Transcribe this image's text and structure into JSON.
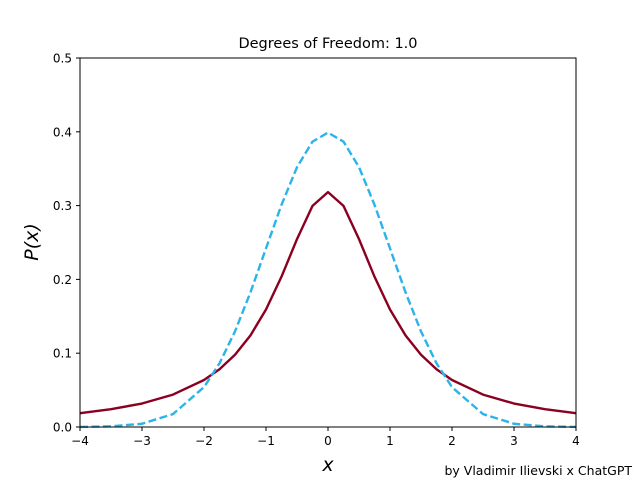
{
  "chart_data": {
    "type": "line",
    "title": "Degrees of Freedom: 1.0",
    "xlabel": "x",
    "ylabel": "P(x)",
    "xlim": [
      -4,
      4
    ],
    "ylim": [
      0,
      0.5
    ],
    "xticks": [
      -4,
      -3,
      -2,
      -1,
      0,
      1,
      2,
      3,
      4
    ],
    "xtick_labels": [
      "−4",
      "−3",
      "−2",
      "−1",
      "0",
      "1",
      "2",
      "3",
      "4"
    ],
    "yticks": [
      0.0,
      0.1,
      0.2,
      0.3,
      0.4,
      0.5
    ],
    "ytick_labels": [
      "0.0",
      "0.1",
      "0.2",
      "0.3",
      "0.4",
      "0.5"
    ],
    "grid": false,
    "legend": "none",
    "series": [
      {
        "style": "solid",
        "color": "#8b0021",
        "x": [
          -4,
          -3.5,
          -3,
          -2.5,
          -2,
          -1.75,
          -1.5,
          -1.25,
          -1,
          -0.75,
          -0.5,
          -0.25,
          0,
          0.25,
          0.5,
          0.75,
          1,
          1.25,
          1.5,
          1.75,
          2,
          2.5,
          3,
          3.5,
          4
        ],
        "values": [
          0.0187,
          0.0241,
          0.0318,
          0.0439,
          0.0637,
          0.0783,
          0.0979,
          0.1242,
          0.1592,
          0.2037,
          0.2546,
          0.2996,
          0.3183,
          0.2996,
          0.2546,
          0.2037,
          0.1592,
          0.1242,
          0.0979,
          0.0783,
          0.0637,
          0.0439,
          0.0318,
          0.0241,
          0.0187
        ]
      },
      {
        "style": "dashed",
        "color": "#2bb3ea",
        "x": [
          -4,
          -3.5,
          -3,
          -2.5,
          -2,
          -1.75,
          -1.5,
          -1.25,
          -1,
          -0.75,
          -0.5,
          -0.25,
          0,
          0.25,
          0.5,
          0.75,
          1,
          1.25,
          1.5,
          1.75,
          2,
          2.5,
          3,
          3.5,
          4
        ],
        "values": [
          0.0001,
          0.0009,
          0.0044,
          0.0175,
          0.054,
          0.0863,
          0.1295,
          0.1826,
          0.242,
          0.3011,
          0.3521,
          0.3867,
          0.3989,
          0.3867,
          0.3521,
          0.3011,
          0.242,
          0.1826,
          0.1295,
          0.0863,
          0.054,
          0.0175,
          0.0044,
          0.0009,
          0.0001
        ]
      }
    ]
  },
  "credit": "by Vladimir Ilievski x ChatGPT"
}
